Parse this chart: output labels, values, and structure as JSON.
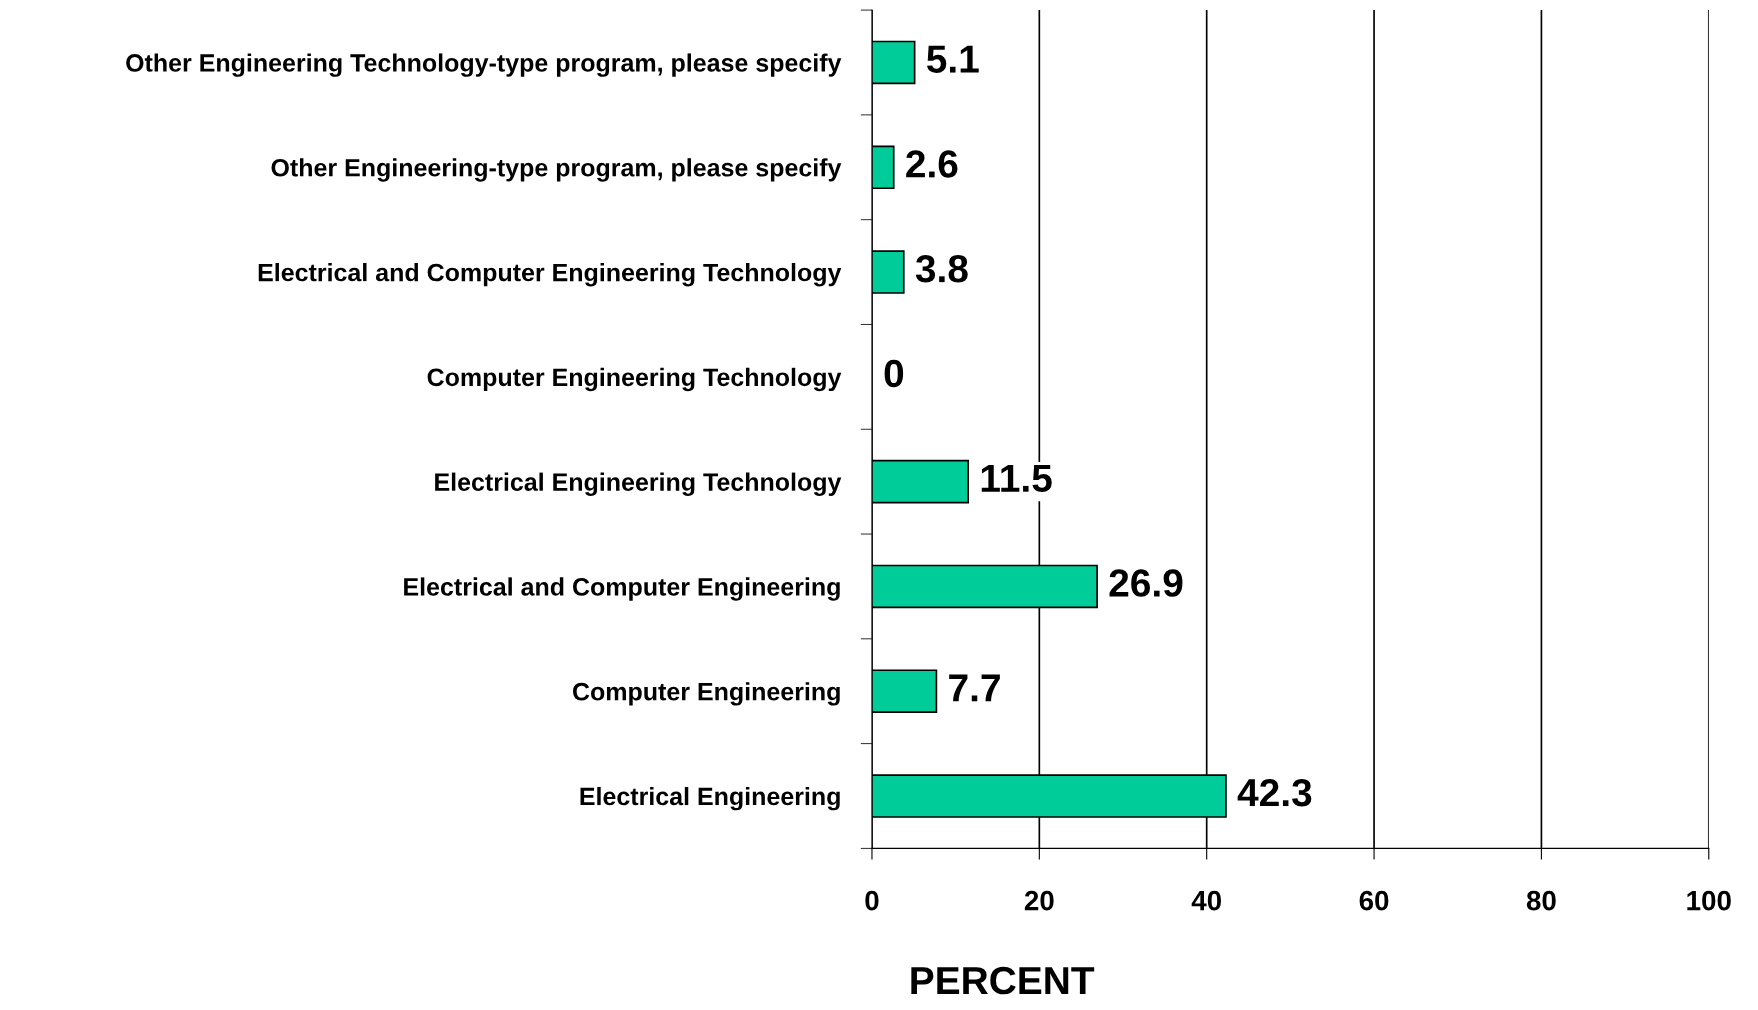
{
  "chart_data": {
    "type": "bar",
    "orientation": "horizontal",
    "xlabel": "PERCENT",
    "categories": [
      "Other Engineering Technology-type program, please specify",
      "Other Engineering-type program, please specify",
      "Electrical and Computer Engineering Technology",
      "Computer Engineering Technology",
      "Electrical Engineering Technology",
      "Electrical and Computer Engineering",
      "Computer Engineering",
      "Electrical Engineering"
    ],
    "values": [
      5.1,
      2.6,
      3.8,
      0,
      11.5,
      26.9,
      7.7,
      42.3
    ],
    "color": "#00cc99",
    "xlim": [
      0,
      100
    ],
    "xticks": [
      0,
      20,
      40,
      60,
      80,
      100
    ],
    "grid": "x",
    "data_labels": true
  }
}
